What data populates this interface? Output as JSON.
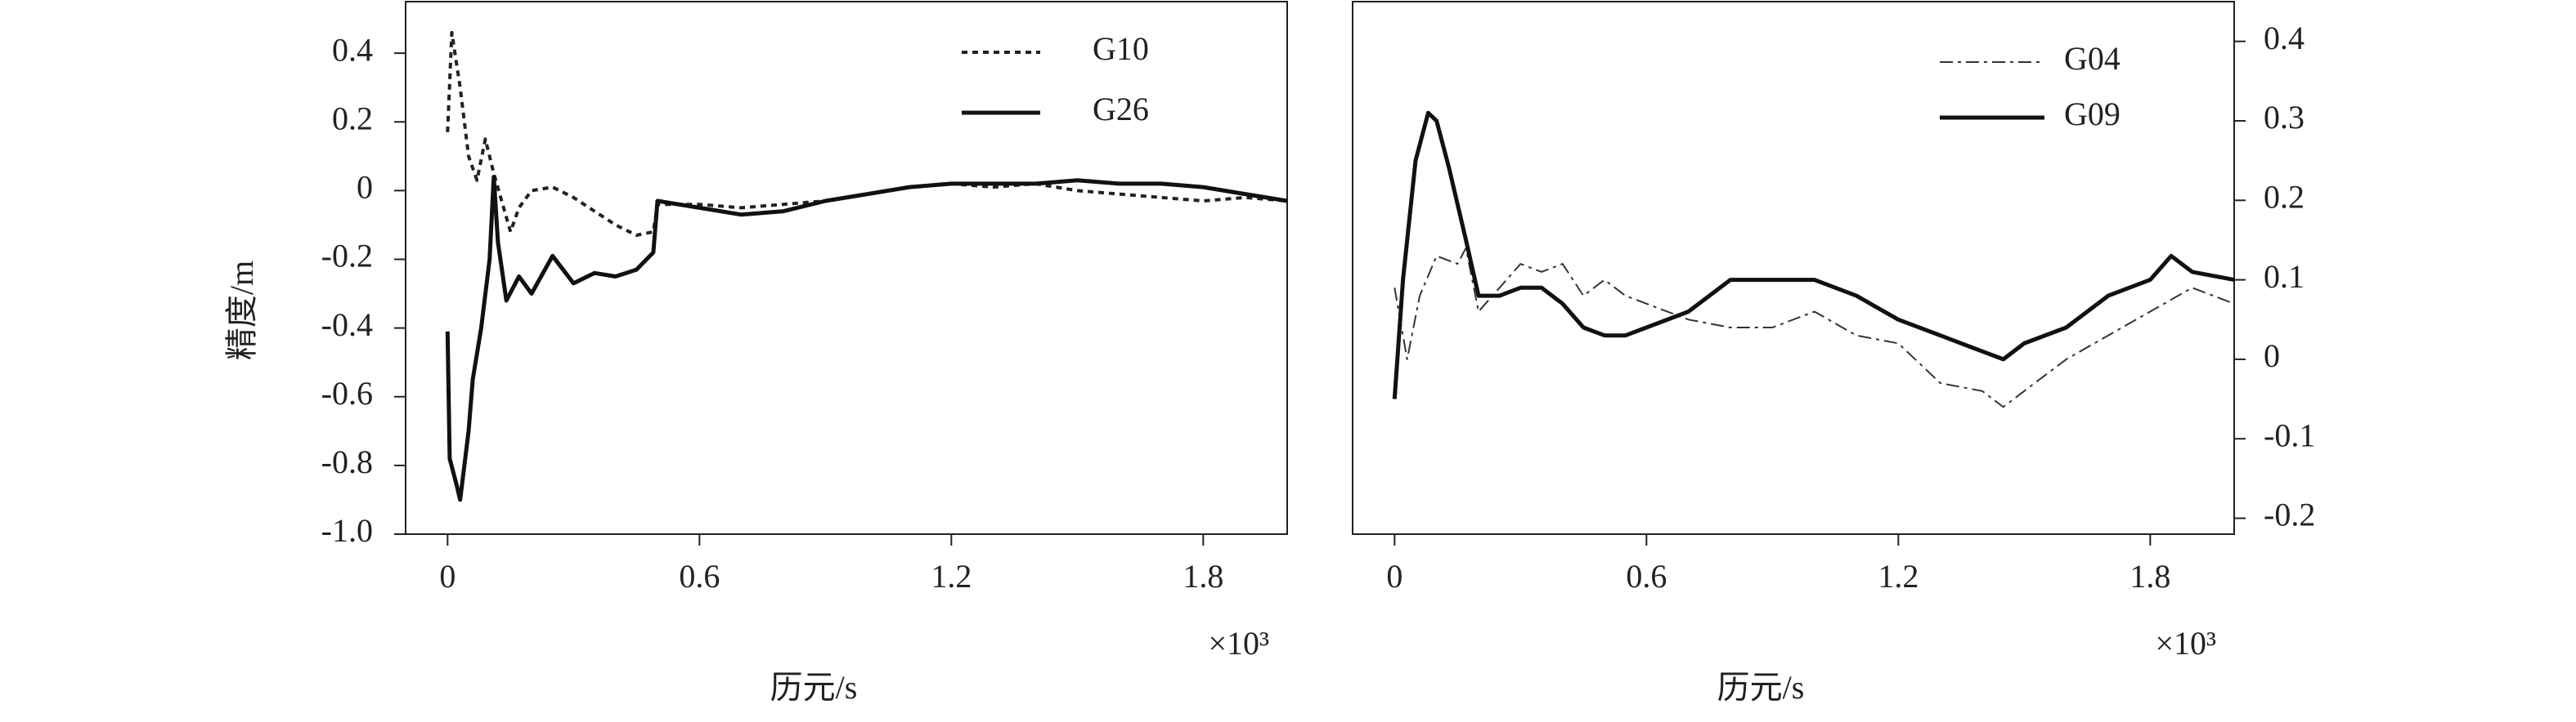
{
  "chart_data": [
    {
      "type": "line",
      "y_label": "精度/m",
      "x_label": "历元/s",
      "x_multiplier": "×10³",
      "xlim": [
        -0.1,
        2.0
      ],
      "xticks": [
        0,
        0.6,
        1.2,
        1.8
      ],
      "ylim": [
        -1.0,
        0.55
      ],
      "yticks": [
        0.4,
        0.2,
        0,
        -0.2,
        -0.4,
        -0.6,
        -0.8,
        {
          "value": -1.0,
          "label": "-1.0"
        }
      ],
      "y_axis_side": "left",
      "legend": "upper right",
      "series": [
        {
          "name": "G10",
          "color": "#222222",
          "linestyle": "dotted",
          "x": [
            0,
            0.01,
            0.03,
            0.05,
            0.07,
            0.09,
            0.11,
            0.15,
            0.17,
            0.2,
            0.25,
            0.3,
            0.35,
            0.4,
            0.45,
            0.49,
            0.5,
            0.6,
            0.7,
            0.8,
            0.9,
            1.0,
            1.1,
            1.2,
            1.3,
            1.4,
            1.5,
            1.6,
            1.7,
            1.8,
            1.9,
            2.0
          ],
          "values": [
            0.17,
            0.46,
            0.3,
            0.1,
            0.03,
            0.15,
            0.05,
            -0.12,
            -0.05,
            0,
            0.01,
            -0.02,
            -0.06,
            -0.1,
            -0.13,
            -0.12,
            -0.04,
            -0.04,
            -0.05,
            -0.04,
            -0.03,
            -0.01,
            0.01,
            0.02,
            0.01,
            0.02,
            0,
            -0.01,
            -0.02,
            -0.03,
            -0.02,
            -0.03
          ]
        },
        {
          "name": "G26",
          "color": "#111111",
          "linestyle": "solid",
          "x": [
            0,
            0.005,
            0.02,
            0.03,
            0.05,
            0.06,
            0.08,
            0.1,
            0.11,
            0.12,
            0.14,
            0.17,
            0.2,
            0.25,
            0.3,
            0.35,
            0.4,
            0.45,
            0.49,
            0.5,
            0.6,
            0.7,
            0.8,
            0.9,
            1.0,
            1.1,
            1.2,
            1.3,
            1.4,
            1.5,
            1.6,
            1.7,
            1.8,
            1.9,
            2.0
          ],
          "values": [
            -0.41,
            -0.78,
            -0.85,
            -0.9,
            -0.7,
            -0.55,
            -0.4,
            -0.2,
            0.04,
            -0.15,
            -0.32,
            -0.25,
            -0.3,
            -0.19,
            -0.27,
            -0.24,
            -0.25,
            -0.23,
            -0.18,
            -0.03,
            -0.05,
            -0.07,
            -0.06,
            -0.03,
            -0.01,
            0.01,
            0.02,
            0.02,
            0.02,
            0.03,
            0.02,
            0.02,
            0.01,
            -0.01,
            -0.03
          ]
        }
      ]
    },
    {
      "type": "line",
      "x_label": "历元/s",
      "x_multiplier": "×10³",
      "xlim": [
        -0.1,
        2.0
      ],
      "xticks": [
        0,
        0.6,
        1.2,
        1.8
      ],
      "ylim": [
        -0.22,
        0.45
      ],
      "yticks": [
        0.4,
        0.3,
        0.2,
        0.1,
        0,
        -0.1,
        -0.2
      ],
      "y_axis_side": "right",
      "legend": "upper right",
      "series": [
        {
          "name": "G04",
          "color": "#333333",
          "linestyle": "dashdot",
          "x": [
            0,
            0.03,
            0.06,
            0.1,
            0.15,
            0.17,
            0.2,
            0.25,
            0.3,
            0.35,
            0.4,
            0.45,
            0.5,
            0.55,
            0.6,
            0.7,
            0.8,
            0.9,
            1.0,
            1.1,
            1.2,
            1.3,
            1.4,
            1.45,
            1.5,
            1.6,
            1.7,
            1.8,
            1.9,
            2.0
          ],
          "values": [
            0.09,
            0,
            0.08,
            0.13,
            0.12,
            0.14,
            0.06,
            0.09,
            0.12,
            0.11,
            0.12,
            0.08,
            0.1,
            0.08,
            0.07,
            0.05,
            0.04,
            0.04,
            0.06,
            0.03,
            0.02,
            -0.03,
            -0.04,
            -0.06,
            -0.04,
            0,
            0.03,
            0.06,
            0.09,
            0.07
          ]
        },
        {
          "name": "G09",
          "color": "#111111",
          "linestyle": "solid",
          "x": [
            0,
            0.02,
            0.05,
            0.08,
            0.1,
            0.13,
            0.17,
            0.2,
            0.25,
            0.3,
            0.35,
            0.4,
            0.45,
            0.5,
            0.55,
            0.6,
            0.7,
            0.8,
            0.9,
            1.0,
            1.1,
            1.2,
            1.3,
            1.4,
            1.45,
            1.5,
            1.6,
            1.7,
            1.8,
            1.85,
            1.9,
            2.0
          ],
          "values": [
            -0.05,
            0.1,
            0.25,
            0.31,
            0.3,
            0.24,
            0.15,
            0.08,
            0.08,
            0.09,
            0.09,
            0.07,
            0.04,
            0.03,
            0.03,
            0.04,
            0.06,
            0.1,
            0.1,
            0.1,
            0.08,
            0.05,
            0.03,
            0.01,
            0,
            0.02,
            0.04,
            0.08,
            0.1,
            0.13,
            0.11,
            0.1
          ]
        }
      ]
    }
  ]
}
